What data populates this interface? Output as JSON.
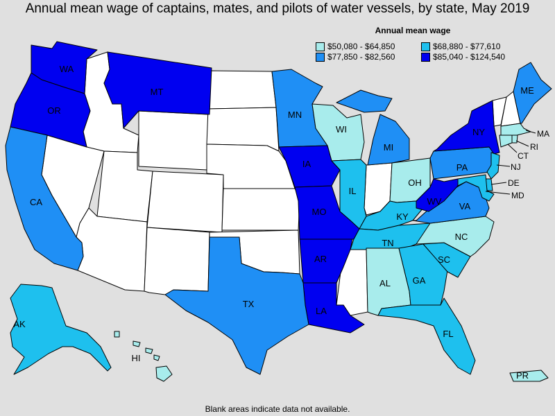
{
  "title": "Annual mean wage of captains, mates, and pilots of water vessels, by state, May 2019",
  "legend": {
    "title": "Annual mean wage",
    "items": [
      {
        "label": "$50,080 - $64,850",
        "color": "#a8ecec"
      },
      {
        "label": "$68,880 - $77,610",
        "color": "#1ec0ee"
      },
      {
        "label": "$77,850 - $82,560",
        "color": "#1f8ff5"
      },
      {
        "label": "$85,040 - $124,540",
        "color": "#0000f0"
      }
    ]
  },
  "footnote": "Blank areas indicate data not available.",
  "colors": {
    "no_data": "#ffffff",
    "background": "#e0e0e0",
    "border": "#000000"
  },
  "states": {
    "WA": {
      "label": "WA",
      "class": 3
    },
    "OR": {
      "label": "OR",
      "class": 3
    },
    "CA": {
      "label": "CA",
      "class": 2
    },
    "MT": {
      "label": "MT",
      "class": 3
    },
    "MN": {
      "label": "MN",
      "class": 2
    },
    "WI": {
      "label": "WI",
      "class": 0
    },
    "IA": {
      "label": "IA",
      "class": 3
    },
    "IL": {
      "label": "IL",
      "class": 1
    },
    "MI": {
      "label": "MI",
      "class": 2
    },
    "OH": {
      "label": "OH",
      "class": 0
    },
    "MO": {
      "label": "MO",
      "class": 3
    },
    "AR": {
      "label": "AR",
      "class": 3
    },
    "LA": {
      "label": "LA",
      "class": 3
    },
    "TX": {
      "label": "TX",
      "class": 2
    },
    "KY": {
      "label": "KY",
      "class": 1
    },
    "TN": {
      "label": "TN",
      "class": 1
    },
    "AL": {
      "label": "AL",
      "class": 0
    },
    "GA": {
      "label": "GA",
      "class": 1
    },
    "FL": {
      "label": "FL",
      "class": 1
    },
    "SC": {
      "label": "SC",
      "class": 1
    },
    "NC": {
      "label": "NC",
      "class": 0
    },
    "VA": {
      "label": "VA",
      "class": 2
    },
    "WV": {
      "label": "WV",
      "class": 3
    },
    "PA": {
      "label": "PA",
      "class": 2
    },
    "NY": {
      "label": "NY",
      "class": 3
    },
    "ME": {
      "label": "ME",
      "class": 2
    },
    "MA": {
      "label": "MA",
      "class": 0
    },
    "RI": {
      "label": "RI",
      "class": 0
    },
    "CT": {
      "label": "CT",
      "class": 0
    },
    "NJ": {
      "label": "NJ",
      "class": 1
    },
    "DE": {
      "label": "DE",
      "class": 1
    },
    "MD": {
      "label": "MD",
      "class": 1
    },
    "AK": {
      "label": "AK",
      "class": 1
    },
    "HI": {
      "label": "HI",
      "class": 0
    },
    "PR": {
      "label": "PR",
      "class": 0
    }
  }
}
